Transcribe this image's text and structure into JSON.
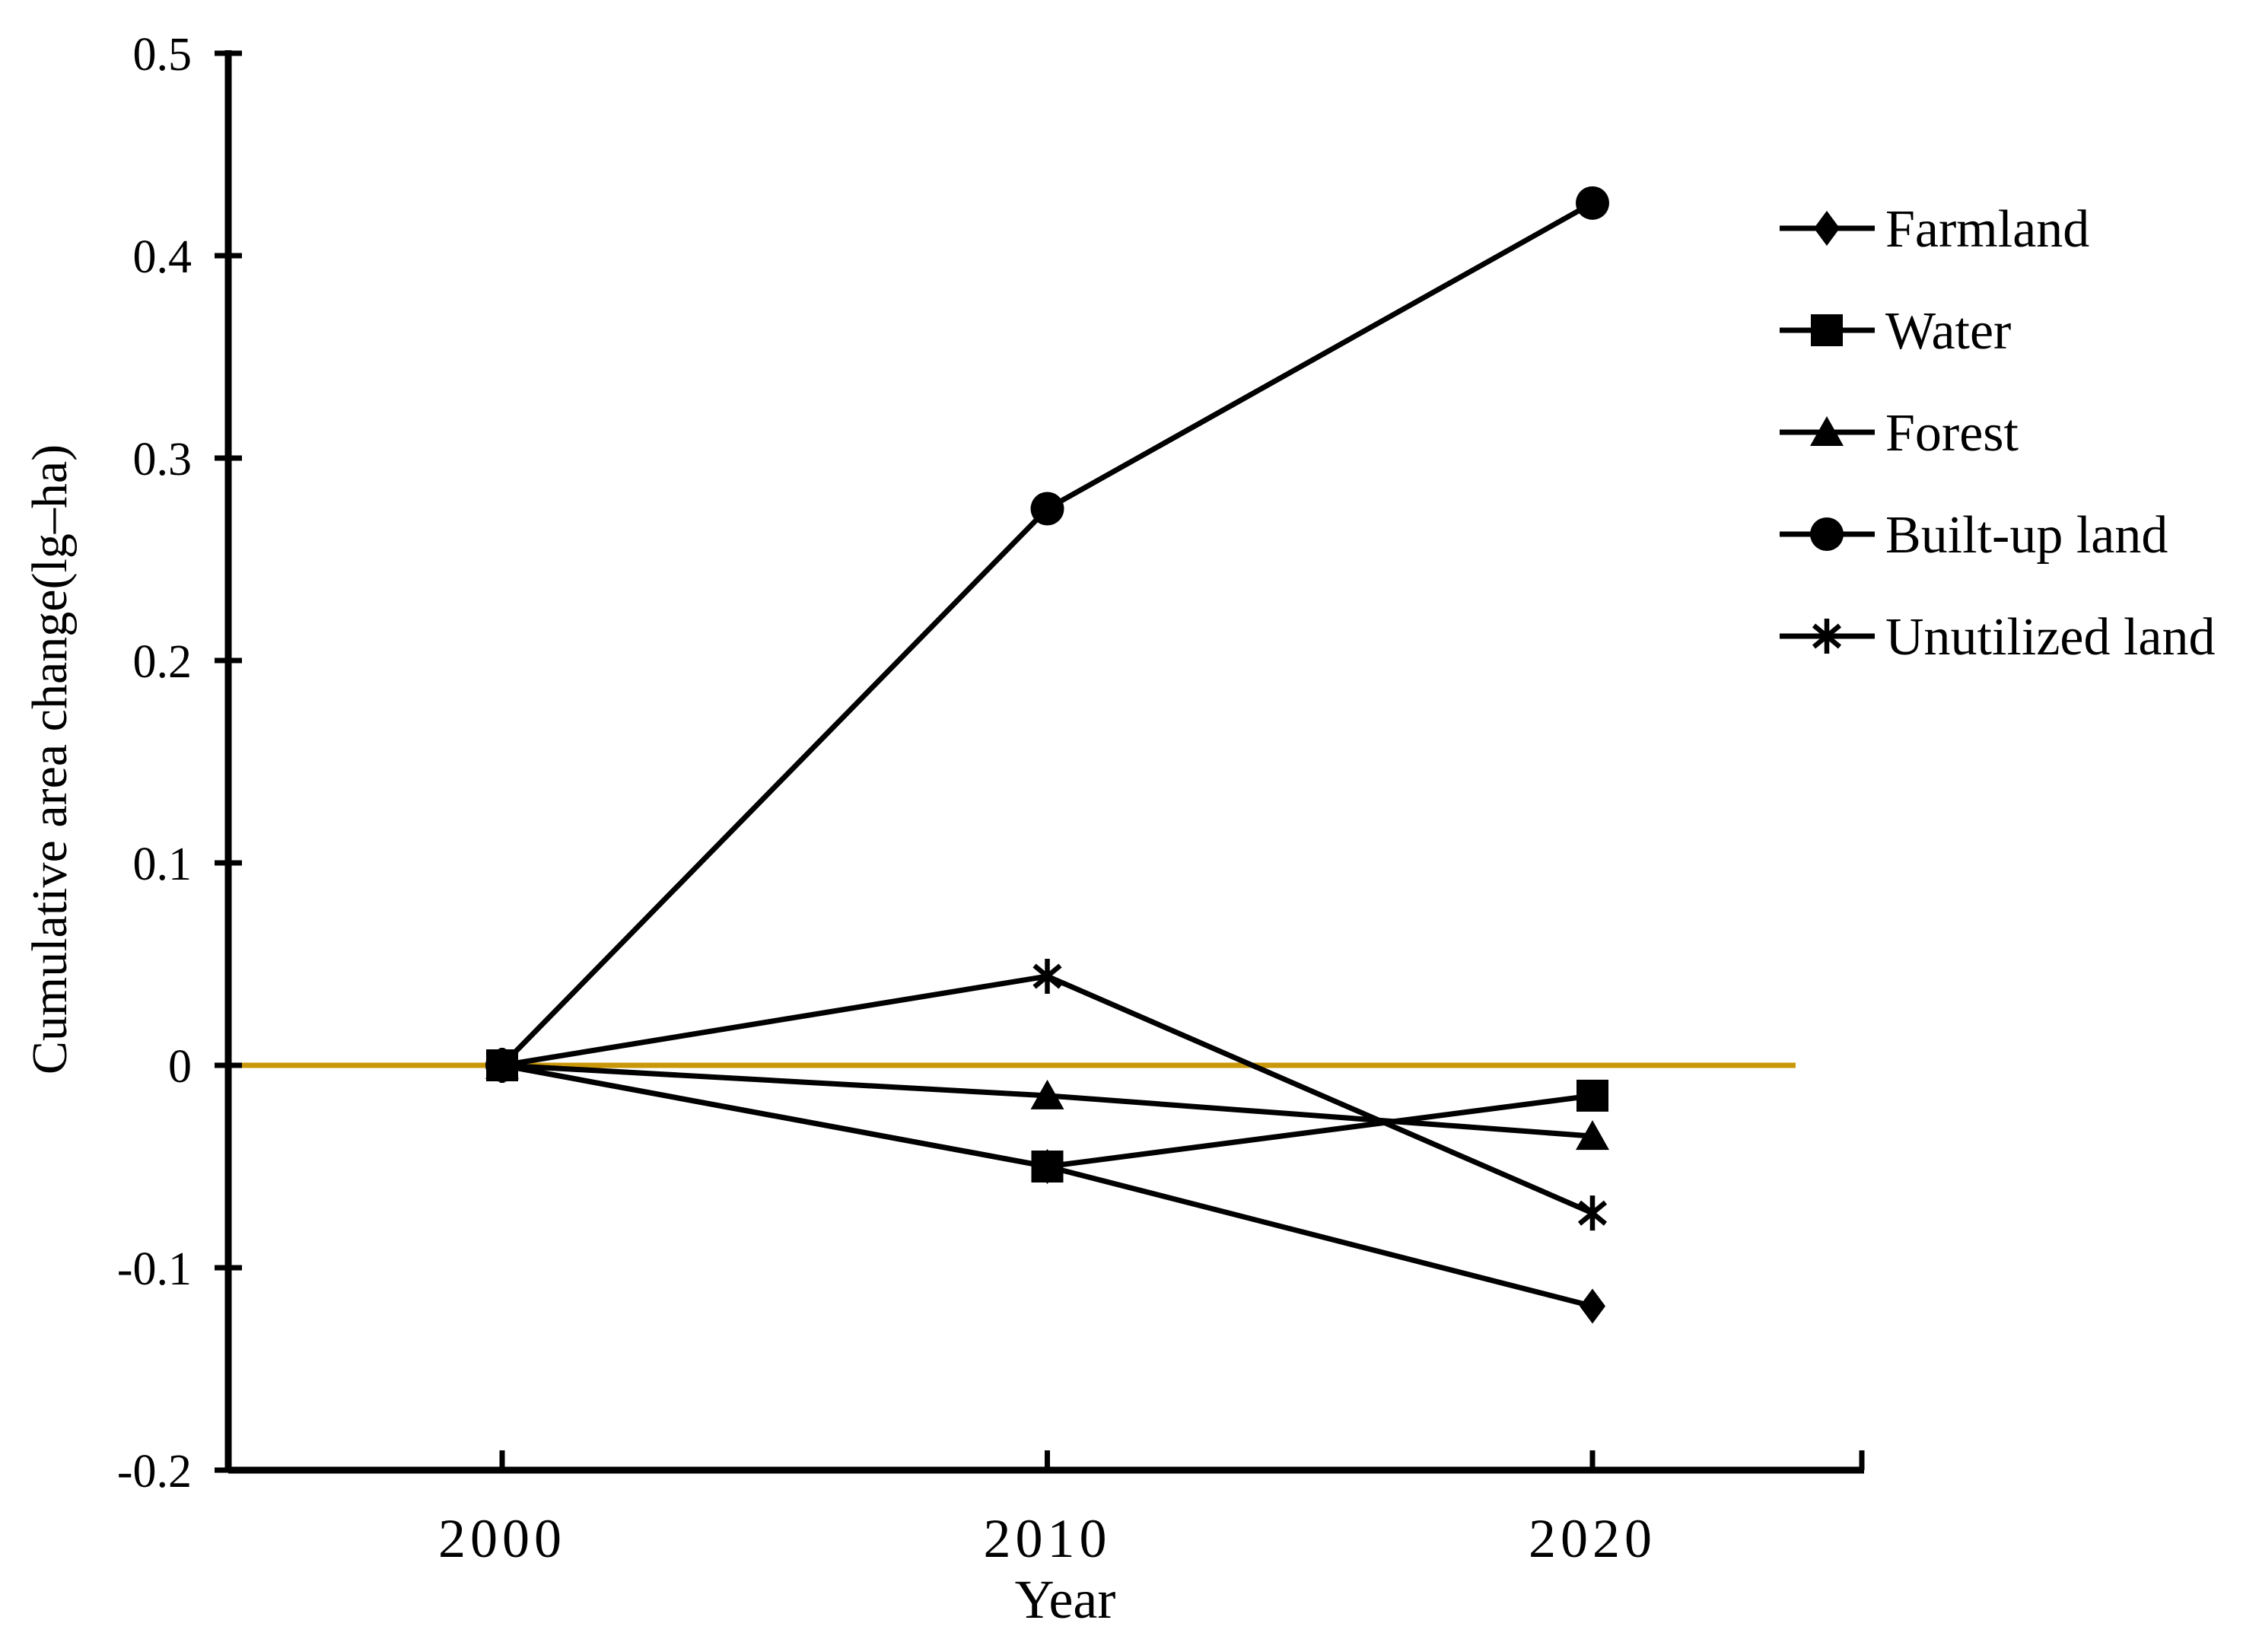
{
  "chart_data": {
    "type": "line",
    "x": [
      2000,
      2010,
      2020
    ],
    "x_labels": [
      "2000",
      "2010",
      "2020"
    ],
    "xlabel": "Year",
    "ylabel": "Cumulative area change(lg–ha)",
    "ylim": [
      -0.2,
      0.5
    ],
    "ytick_step": 0.1,
    "ytick_labels": [
      "0.5",
      "0.4",
      "0.3",
      "0.2",
      "0.1",
      "0",
      "-0.1",
      "-0.2"
    ],
    "grid": false,
    "legend_position": "right",
    "colors": {
      "series": "#000000",
      "zero_line": "#C9980A",
      "axis": "#000000",
      "background": "#FFFFFF"
    },
    "zero_line_value": 0,
    "series": [
      {
        "name": "Farmland",
        "marker": "diamond",
        "values": [
          0,
          -0.05,
          -0.119
        ]
      },
      {
        "name": "Water",
        "marker": "square",
        "values": [
          0,
          -0.05,
          -0.015
        ]
      },
      {
        "name": "Forest",
        "marker": "triangle",
        "values": [
          0,
          -0.015,
          -0.035
        ]
      },
      {
        "name": "Built-up land",
        "marker": "circle",
        "values": [
          0,
          0.275,
          0.426
        ]
      },
      {
        "name": "Unutilized land",
        "marker": "asterisk",
        "values": [
          0,
          0.044,
          -0.073
        ]
      }
    ],
    "draw_order": [
      "Built-up land",
      "Forest",
      "Unutilized land",
      "Farmland",
      "Water"
    ]
  }
}
